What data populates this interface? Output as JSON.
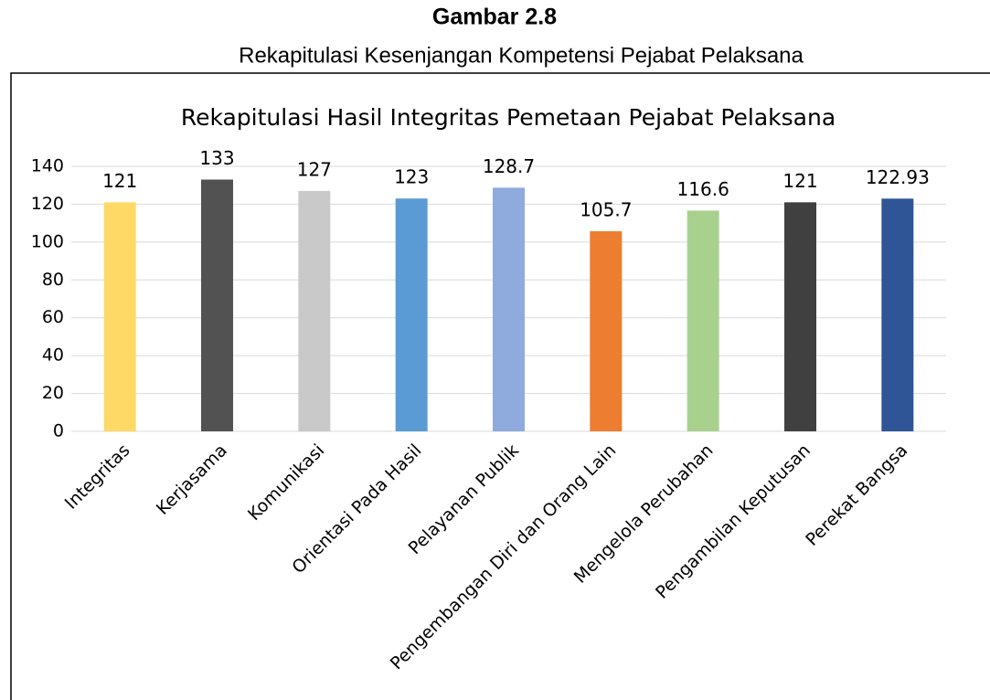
{
  "heading": "Gambar 2.8",
  "caption": "Rekapitulasi Kesenjangan Kompetensi Pejabat Pelaksana",
  "chart_data": {
    "type": "bar",
    "title": "Rekapitulasi Hasil Integritas Pemetaan Pejabat Pelaksana",
    "categories": [
      "Integritas",
      "Kerjasama",
      "Komunikasi",
      "Orientasi Pada Hasil",
      "Pelayanan Publik",
      "Pengembangan Diri dan Orang Lain",
      "Mengelola Perubahan",
      "Pengambilan Keputusan",
      "Perekat Bangsa"
    ],
    "values": [
      121,
      133,
      127,
      123,
      128.7,
      105.7,
      116.6,
      121,
      122.93
    ],
    "colors": [
      "#ffd966",
      "#525252",
      "#c9c9c9",
      "#5b9bd5",
      "#8faadc",
      "#ed7d31",
      "#a9d18e",
      "#404040",
      "#2f5597"
    ],
    "ylim": [
      0,
      140
    ],
    "yticks": [
      0,
      20,
      40,
      60,
      80,
      100,
      120,
      140
    ],
    "grid": true
  }
}
